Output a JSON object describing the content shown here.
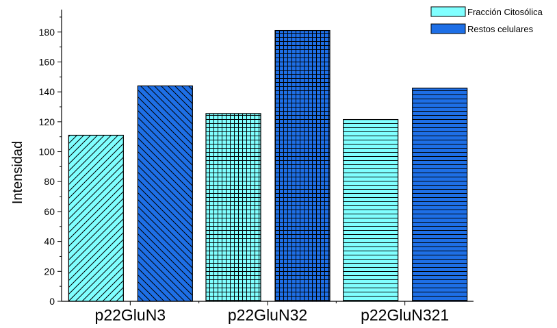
{
  "chart_data": {
    "type": "bar",
    "ylabel": "Intensidad",
    "xlabel": "",
    "ylim": [
      0,
      195
    ],
    "yticks": [
      0,
      20,
      40,
      60,
      80,
      100,
      120,
      140,
      160,
      180
    ],
    "groups": [
      "p22GluN3",
      "p22GluN32",
      "p22GluN321"
    ],
    "series": [
      {
        "name": "Fracción Citosólica",
        "color": "#80ffff",
        "values": [
          111,
          125.5,
          121.5
        ]
      },
      {
        "name": "Restos celulares",
        "color": "#1e6fe6",
        "values": [
          144,
          181,
          142.5
        ]
      }
    ],
    "bar_patterns": [
      [
        "diagonal",
        "diagonal"
      ],
      [
        "grid",
        "grid"
      ],
      [
        "horizontal",
        "horizontal"
      ]
    ],
    "legend_position": "top-right",
    "grid": false
  }
}
